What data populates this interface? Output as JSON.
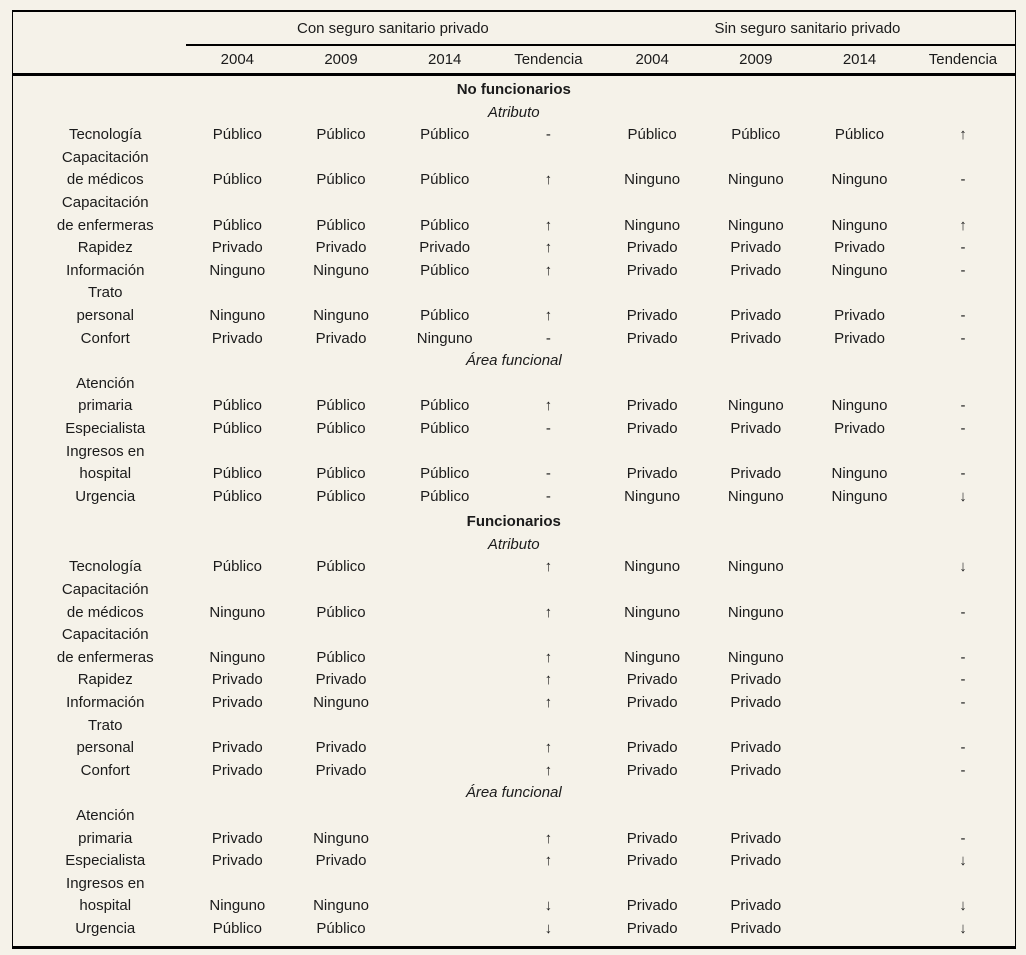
{
  "colors": {
    "background": "#f5f2e9",
    "text": "#1b1b1b",
    "rule": "#000000"
  },
  "table": {
    "group_headers": [
      "Con seguro sanitario privado",
      "Sin seguro sanitario privado"
    ],
    "column_headers": [
      "2004",
      "2009",
      "2014",
      "Tendencia",
      "2004",
      "2009",
      "2014",
      "Tendencia"
    ],
    "sections": [
      {
        "title": "No funcionarios",
        "subsections": [
          {
            "title": "Atributo",
            "rows": [
              {
                "label": "Tecnología",
                "values": [
                  "Público",
                  "Público",
                  "Público",
                  "-",
                  "Público",
                  "Público",
                  "Público",
                  "↑"
                ]
              },
              {
                "label": "Capacitación\nde médicos",
                "values": [
                  "Público",
                  "Público",
                  "Público",
                  "↑",
                  "Ninguno",
                  "Ninguno",
                  "Ninguno",
                  "-"
                ]
              },
              {
                "label": "Capacitación\nde enfermeras",
                "values": [
                  "Público",
                  "Público",
                  "Público",
                  "↑",
                  "Ninguno",
                  "Ninguno",
                  "Ninguno",
                  "↑"
                ]
              },
              {
                "label": "Rapidez",
                "values": [
                  "Privado",
                  "Privado",
                  "Privado",
                  "↑",
                  "Privado",
                  "Privado",
                  "Privado",
                  "-"
                ]
              },
              {
                "label": "Información",
                "values": [
                  "Ninguno",
                  "Ninguno",
                  "Público",
                  "↑",
                  "Privado",
                  "Privado",
                  "Ninguno",
                  "-"
                ]
              },
              {
                "label": "Trato\npersonal",
                "values": [
                  "Ninguno",
                  "Ninguno",
                  "Público",
                  "↑",
                  "Privado",
                  "Privado",
                  "Privado",
                  "-"
                ]
              },
              {
                "label": "Confort",
                "values": [
                  "Privado",
                  "Privado",
                  "Ninguno",
                  "-",
                  "Privado",
                  "Privado",
                  "Privado",
                  "-"
                ]
              }
            ]
          },
          {
            "title": "Área funcional",
            "rows": [
              {
                "label": "Atención\nprimaria",
                "values": [
                  "Público",
                  "Público",
                  "Público",
                  "↑",
                  "Privado",
                  "Ninguno",
                  "Ninguno",
                  "-"
                ]
              },
              {
                "label": "Especialista",
                "values": [
                  "Público",
                  "Público",
                  "Público",
                  "-",
                  "Privado",
                  "Privado",
                  "Privado",
                  "-"
                ]
              },
              {
                "label": "Ingresos en\nhospital",
                "values": [
                  "Público",
                  "Público",
                  "Público",
                  "-",
                  "Privado",
                  "Privado",
                  "Ninguno",
                  "-"
                ]
              },
              {
                "label": "Urgencia",
                "values": [
                  "Público",
                  "Público",
                  "Público",
                  "-",
                  "Ninguno",
                  "Ninguno",
                  "Ninguno",
                  "↓"
                ]
              }
            ]
          }
        ]
      },
      {
        "title": "Funcionarios",
        "subsections": [
          {
            "title": "Atributo",
            "rows": [
              {
                "label": "Tecnología",
                "values": [
                  "Público",
                  "Público",
                  "",
                  "↑",
                  "Ninguno",
                  "Ninguno",
                  "",
                  "↓"
                ]
              },
              {
                "label": "Capacitación\nde médicos",
                "values": [
                  "Ninguno",
                  "Público",
                  "",
                  "↑",
                  "Ninguno",
                  "Ninguno",
                  "",
                  "-"
                ]
              },
              {
                "label": "Capacitación\nde enfermeras",
                "values": [
                  "Ninguno",
                  "Público",
                  "",
                  "↑",
                  "Ninguno",
                  "Ninguno",
                  "",
                  "-"
                ]
              },
              {
                "label": "Rapidez",
                "values": [
                  "Privado",
                  "Privado",
                  "",
                  "↑",
                  "Privado",
                  "Privado",
                  "",
                  "-"
                ]
              },
              {
                "label": "Información",
                "values": [
                  "Privado",
                  "Ninguno",
                  "",
                  "↑",
                  "Privado",
                  "Privado",
                  "",
                  "-"
                ]
              },
              {
                "label": "Trato\npersonal",
                "values": [
                  "Privado",
                  "Privado",
                  "",
                  "↑",
                  "Privado",
                  "Privado",
                  "",
                  "-"
                ]
              },
              {
                "label": "Confort",
                "values": [
                  "Privado",
                  "Privado",
                  "",
                  "↑",
                  "Privado",
                  "Privado",
                  "",
                  "-"
                ]
              }
            ]
          },
          {
            "title": "Área funcional",
            "rows": [
              {
                "label": "Atención\nprimaria",
                "values": [
                  "Privado",
                  "Ninguno",
                  "",
                  "↑",
                  "Privado",
                  "Privado",
                  "",
                  "-"
                ]
              },
              {
                "label": "Especialista",
                "values": [
                  "Privado",
                  "Privado",
                  "",
                  "↑",
                  "Privado",
                  "Privado",
                  "",
                  "↓"
                ]
              },
              {
                "label": "Ingresos en\nhospital",
                "values": [
                  "Ninguno",
                  "Ninguno",
                  "",
                  "↓",
                  "Privado",
                  "Privado",
                  "",
                  "↓"
                ]
              },
              {
                "label": "Urgencia",
                "values": [
                  "Público",
                  "Público",
                  "",
                  "↓",
                  "Privado",
                  "Privado",
                  "",
                  "↓"
                ]
              }
            ]
          }
        ]
      }
    ]
  }
}
